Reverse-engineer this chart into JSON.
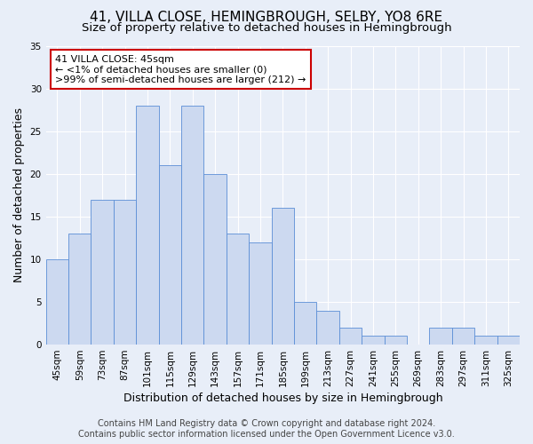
{
  "title": "41, VILLA CLOSE, HEMINGBROUGH, SELBY, YO8 6RE",
  "subtitle": "Size of property relative to detached houses in Hemingbrough",
  "xlabel": "Distribution of detached houses by size in Hemingbrough",
  "ylabel": "Number of detached properties",
  "categories": [
    "45sqm",
    "59sqm",
    "73sqm",
    "87sqm",
    "101sqm",
    "115sqm",
    "129sqm",
    "143sqm",
    "157sqm",
    "171sqm",
    "185sqm",
    "199sqm",
    "213sqm",
    "227sqm",
    "241sqm",
    "255sqm",
    "269sqm",
    "283sqm",
    "297sqm",
    "311sqm",
    "325sqm"
  ],
  "values": [
    10,
    13,
    17,
    17,
    28,
    21,
    28,
    20,
    13,
    12,
    16,
    5,
    4,
    2,
    1,
    1,
    0,
    2,
    2,
    1,
    1
  ],
  "bar_color": "#ccd9f0",
  "bar_edge_color": "#5b8ed6",
  "annotation_text": "41 VILLA CLOSE: 45sqm\n← <1% of detached houses are smaller (0)\n>99% of semi-detached houses are larger (212) →",
  "annotation_box_color": "#ffffff",
  "annotation_box_edge_color": "#cc0000",
  "highlight_bar_index": 0,
  "ylim": [
    0,
    35
  ],
  "yticks": [
    0,
    5,
    10,
    15,
    20,
    25,
    30,
    35
  ],
  "footer_line1": "Contains HM Land Registry data © Crown copyright and database right 2024.",
  "footer_line2": "Contains public sector information licensed under the Open Government Licence v3.0.",
  "bg_color": "#e8eef8",
  "grid_color": "#ffffff",
  "title_fontsize": 11,
  "subtitle_fontsize": 9.5,
  "axis_label_fontsize": 9,
  "tick_fontsize": 7.5,
  "footer_fontsize": 7,
  "annotation_fontsize": 8
}
